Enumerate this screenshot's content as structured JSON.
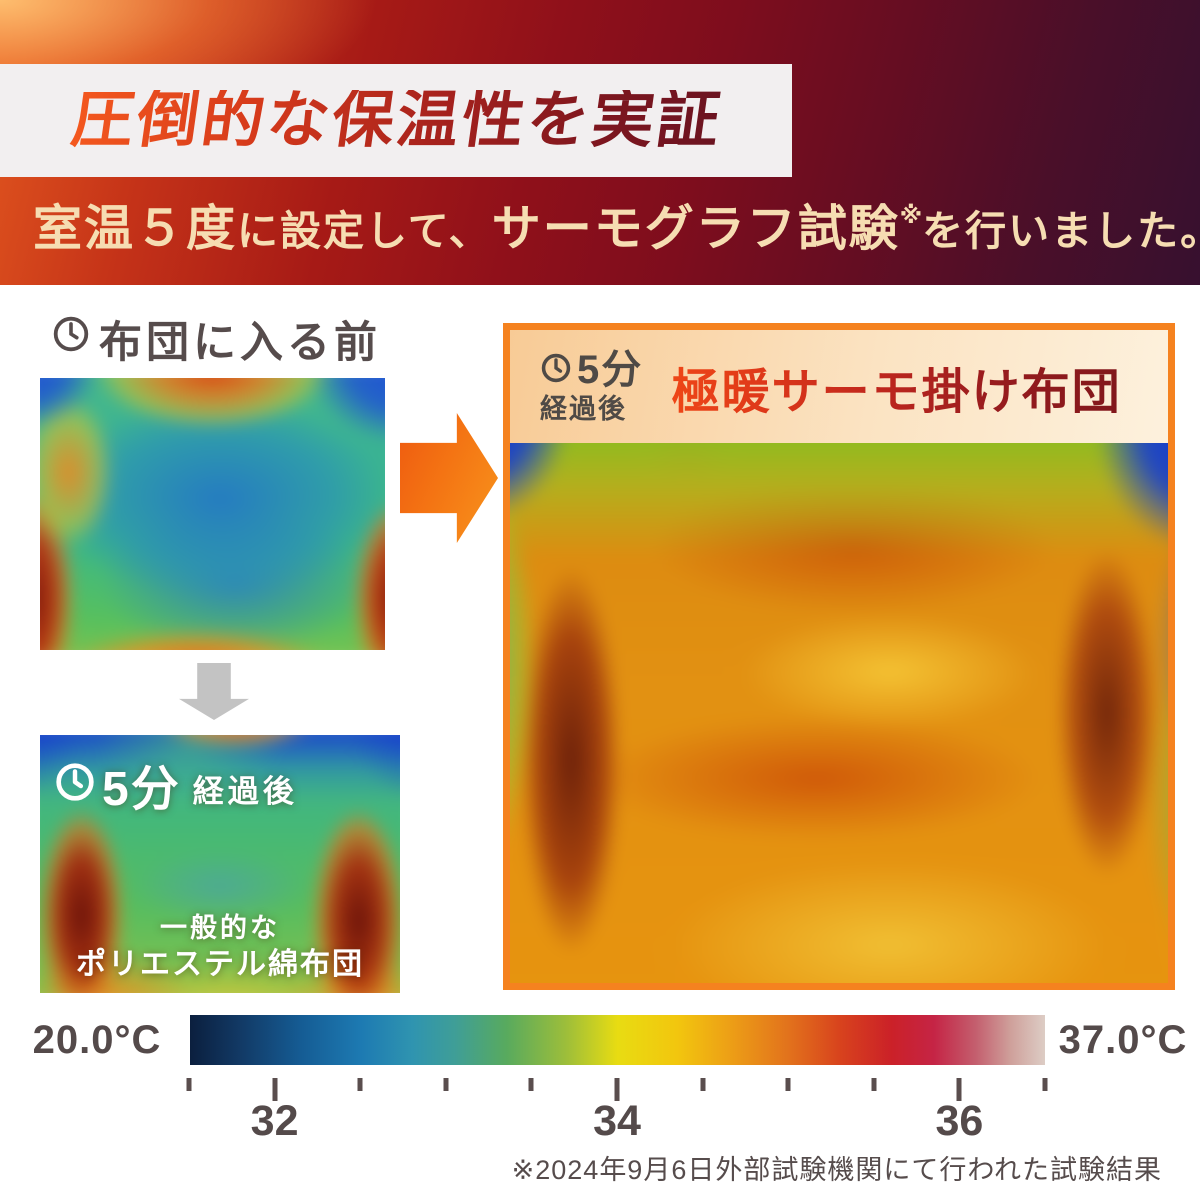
{
  "hero": {
    "title": "圧倒的な保温性を実証",
    "subtitle": {
      "seg1": "室温５度",
      "seg2": "に設定して、",
      "seg3": "サーモグラフ試験",
      "note_mark": "※",
      "seg4": "を行いました。"
    }
  },
  "before_section": {
    "label": "布団に入る前"
  },
  "general_futon": {
    "time_value": "5分",
    "time_suffix": "経過後",
    "caption_line1": "一般的な",
    "caption_line2": "ポリエステル綿布団"
  },
  "thermo_futon": {
    "time_value": "5分",
    "time_suffix": "経過後",
    "title": "極暖サーモ掛け布団"
  },
  "temperature_scale": {
    "min_label": "20.0°C",
    "max_label": "37.0°C",
    "tick_count": 11,
    "major_tick_indices": [
      1,
      5,
      9
    ],
    "tick_labels": [
      {
        "text": "32",
        "tick_index": 1
      },
      {
        "text": "34",
        "tick_index": 5
      },
      {
        "text": "36",
        "tick_index": 9
      }
    ],
    "gradient_colors": [
      "#0b1f3e",
      "#155c94",
      "#1d7ab2",
      "#3f9e97",
      "#58aa5e",
      "#9dbe3a",
      "#e8dc12",
      "#f2c60e",
      "#eda016",
      "#e2721c",
      "#d8431d",
      "#cb2128",
      "#c52445",
      "#c4606f",
      "#cfa09b",
      "#ddcdc5"
    ]
  },
  "footnote": "※2024年9月6日外部試験機関にて行われた試験結果",
  "accent_colors": {
    "panel_border": "#f5821f",
    "headline_gradient_start": "#f4581e",
    "headline_gradient_end": "#6b1320",
    "subtitle_text": "#f6ddb2",
    "arrow_orange": "#f47413",
    "arrow_gray": "#c3c3c3"
  }
}
